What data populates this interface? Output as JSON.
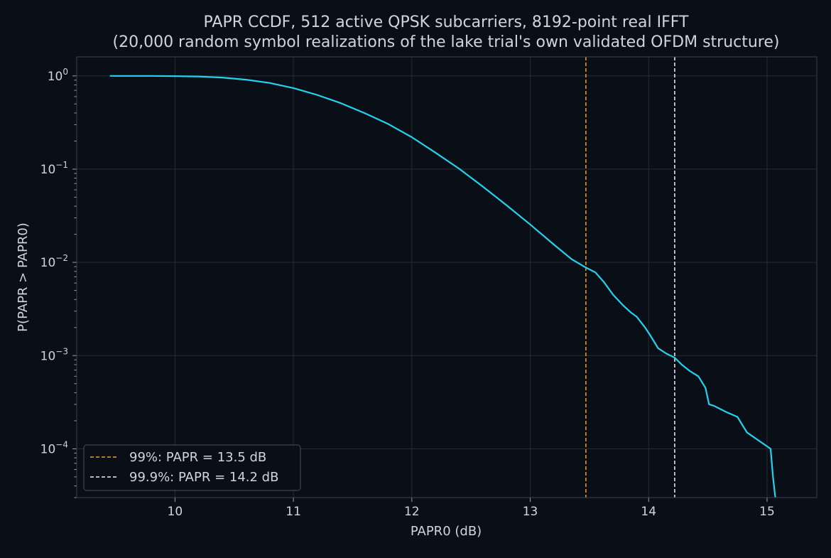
{
  "chart_data": {
    "type": "line",
    "title": "PAPR CCDF, 512 active QPSK subcarriers, 8192-point real IFFT",
    "subtitle": "(20,000 random symbol realizations of the lake trial's own validated OFDM structure)",
    "xlabel": "PAPR0 (dB)",
    "ylabel": "P(PAPR > PAPR0)",
    "y_scale": "log",
    "xlim": [
      9.17,
      15.42
    ],
    "ylim": [
      3e-05,
      1.6
    ],
    "x_ticks": [
      10,
      11,
      12,
      13,
      14,
      15
    ],
    "x_tick_labels": [
      "10",
      "11",
      "12",
      "13",
      "14",
      "15"
    ],
    "y_ticks": [
      1,
      0.1,
      0.01,
      0.001,
      0.0001
    ],
    "y_tick_labels": [
      {
        "base": "10",
        "exp": "0"
      },
      {
        "base": "10",
        "exp": "−1"
      },
      {
        "base": "10",
        "exp": "−2"
      },
      {
        "base": "10",
        "exp": "−3"
      },
      {
        "base": "10",
        "exp": "−4"
      }
    ],
    "grid": true,
    "legend_position": "lower-left",
    "colors": {
      "background": "#0a0e16",
      "curve": "#22d3ee",
      "p99_line": "#f0a030",
      "p999_line": "#f2f2f2"
    },
    "series": [
      {
        "x": [
          9.45,
          9.8,
          10.0,
          10.2,
          10.4,
          10.6,
          10.8,
          11.0,
          11.2,
          11.4,
          11.6,
          11.8,
          12.0,
          12.2,
          12.4,
          12.6,
          12.8,
          13.0,
          13.2,
          13.35,
          13.47,
          13.55,
          13.62,
          13.7,
          13.78,
          13.85,
          13.9,
          13.97,
          14.02,
          14.08,
          14.15,
          14.22,
          14.28,
          14.35,
          14.42,
          14.48,
          14.51,
          14.55,
          14.65,
          14.75,
          14.83,
          15.03,
          15.05,
          15.07
        ],
        "values": [
          1.0,
          1.0,
          0.995,
          0.985,
          0.96,
          0.91,
          0.84,
          0.74,
          0.625,
          0.51,
          0.4,
          0.305,
          0.22,
          0.15,
          0.101,
          0.065,
          0.041,
          0.0255,
          0.0155,
          0.0108,
          0.0088,
          0.0078,
          0.0062,
          0.0045,
          0.0035,
          0.0029,
          0.0026,
          0.002,
          0.0016,
          0.0012,
          0.00105,
          0.00095,
          0.0008,
          0.00068,
          0.0006,
          0.00045,
          0.0003,
          0.00029,
          0.00025,
          0.00022,
          0.00015,
          0.0001,
          5e-05,
          3e-05
        ]
      }
    ],
    "vlines": [
      {
        "x": 13.47,
        "label": "99%: PAPR = 13.5 dB",
        "style": "dashed",
        "color_key": "p99_line"
      },
      {
        "x": 14.22,
        "label": "99.9%: PAPR = 14.2 dB",
        "style": "dashed",
        "color_key": "p999_line"
      }
    ]
  }
}
